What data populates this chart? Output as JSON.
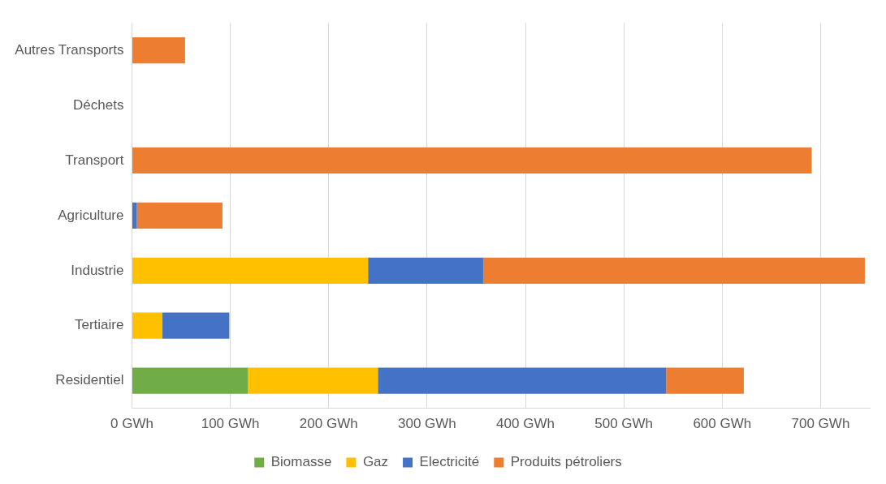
{
  "chart_data": {
    "type": "bar",
    "orientation": "horizontal",
    "stacked": true,
    "categories": [
      "Autres Transports",
      "Déchets",
      "Transport",
      "Agriculture",
      "Industrie",
      "Tertiaire",
      "Residentiel"
    ],
    "series": [
      {
        "name": "Biomasse",
        "color": "#70ad47",
        "values": [
          null,
          null,
          null,
          null,
          null,
          null,
          118
        ]
      },
      {
        "name": "Gaz",
        "color": "#ffc000",
        "values": [
          null,
          null,
          null,
          null,
          240,
          31,
          132
        ]
      },
      {
        "name": "Electricité",
        "color": "#4472c4",
        "values": [
          null,
          null,
          null,
          5,
          117,
          68,
          293
        ]
      },
      {
        "name": "Produits pétroliers",
        "color": "#ed7d31",
        "values": [
          54,
          null,
          691,
          87,
          388,
          null,
          79
        ]
      }
    ],
    "xlim": [
      0,
      750
    ],
    "xticks": [
      {
        "value": 0,
        "label": "0 GWh"
      },
      {
        "value": 100,
        "label": "100 GWh"
      },
      {
        "value": 200,
        "label": "200 GWh"
      },
      {
        "value": 300,
        "label": "300 GWh"
      },
      {
        "value": 400,
        "label": "400 GWh"
      },
      {
        "value": 500,
        "label": "500 GWh"
      },
      {
        "value": 600,
        "label": "600 GWh"
      },
      {
        "value": 700,
        "label": "700 GWh"
      }
    ],
    "grid": "x",
    "legend": "bottom"
  }
}
